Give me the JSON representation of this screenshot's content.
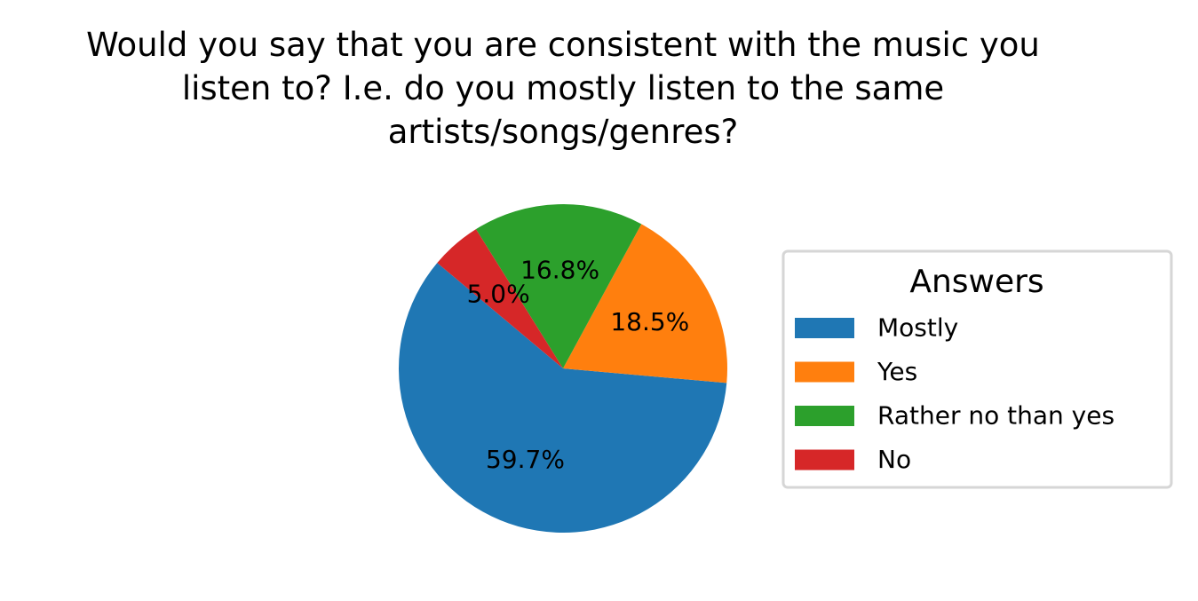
{
  "chart_data": {
    "type": "pie",
    "title_lines": [
      "Would you say that you are consistent with the music you",
      "listen to?  I.e. do you mostly listen to the same",
      "artists/songs/genres?"
    ],
    "slices": [
      {
        "label": "Mostly",
        "value": 59.7,
        "pct_label": "59.7%",
        "color": "#1f77b4"
      },
      {
        "label": "Yes",
        "value": 18.5,
        "pct_label": "18.5%",
        "color": "#ff7f0e"
      },
      {
        "label": "Rather no than yes",
        "value": 16.8,
        "pct_label": "16.8%",
        "color": "#2ca02c"
      },
      {
        "label": "No",
        "value": 5.0,
        "pct_label": "5.0%",
        "color": "#d62728"
      }
    ],
    "start_angle_deg": 140,
    "legend": {
      "title": "Answers",
      "placement": "right"
    }
  }
}
